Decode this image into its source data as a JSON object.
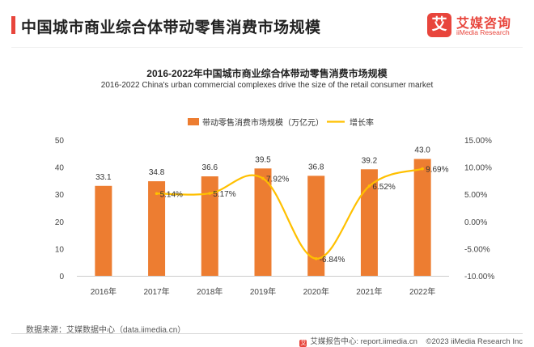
{
  "header": {
    "title": "中国城市商业综合体带动零售消费市场规模",
    "logo_mark": "艾",
    "logo_cn": "艾媒咨询",
    "logo_en": "iiMedia Research"
  },
  "colors": {
    "bar": "#ed7d31",
    "line": "#ffc000",
    "brand": "#e8453c"
  },
  "chart_data": {
    "type": "bar",
    "title": "2016-2022年中国城市商业综合体带动零售消费市场规模",
    "subtitle": "2016-2022 China's urban commercial complexes drive the size of the retail consumer market",
    "categories": [
      "2016年",
      "2017年",
      "2018年",
      "2019年",
      "2020年",
      "2021年",
      "2022年"
    ],
    "series": [
      {
        "name": "带动零售消费市场规模（万亿元）",
        "type": "bar",
        "axis": "left",
        "values": [
          33.1,
          34.8,
          36.6,
          39.5,
          36.8,
          39.2,
          43.0
        ],
        "labels": [
          "33.1",
          "34.8",
          "36.6",
          "39.5",
          "36.8",
          "39.2",
          "43.0"
        ]
      },
      {
        "name": "增长率",
        "type": "line",
        "axis": "right",
        "values": [
          null,
          5.14,
          5.17,
          7.92,
          -6.84,
          6.52,
          9.69
        ],
        "labels": [
          null,
          "5.14%",
          "5.17%",
          "7.92%",
          "-6.84%",
          "6.52%",
          "9.69%"
        ]
      }
    ],
    "ylim_left": [
      0,
      50
    ],
    "yticks_left": [
      "0",
      "10",
      "20",
      "30",
      "40",
      "50"
    ],
    "ylim_right": [
      -10,
      15
    ],
    "yticks_right": [
      "-10.00%",
      "-5.00%",
      "0.00%",
      "5.00%",
      "10.00%",
      "15.00%"
    ],
    "legend_position": "top-center",
    "grid": false
  },
  "footer": {
    "source": "数据来源：艾媒数据中心（data.iimedia.cn）",
    "report": "艾媒报告中心: report.iimedia.cn",
    "copyright": "©2023  iiMedia Research  Inc"
  }
}
